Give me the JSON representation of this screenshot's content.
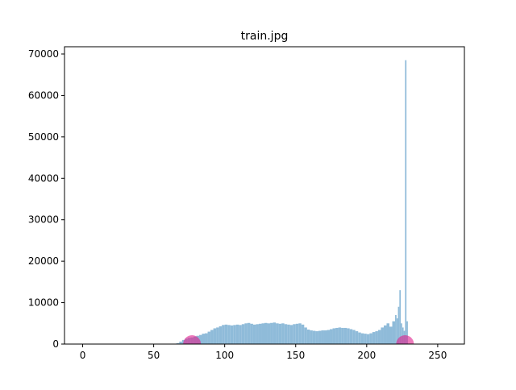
{
  "chart_data": {
    "type": "histogram",
    "title": "train.jpg",
    "bins": [
      66,
      68,
      70,
      72,
      74,
      76,
      78,
      80,
      82,
      84,
      86,
      88,
      90,
      92,
      94,
      96,
      98,
      100,
      102,
      104,
      106,
      108,
      110,
      112,
      114,
      116,
      118,
      120,
      122,
      124,
      126,
      128,
      130,
      132,
      134,
      136,
      138,
      140,
      142,
      144,
      146,
      148,
      150,
      152,
      154,
      156,
      158,
      160,
      162,
      164,
      166,
      168,
      170,
      172,
      174,
      176,
      178,
      180,
      182,
      184,
      186,
      188,
      190,
      192,
      194,
      196,
      198,
      200,
      202,
      204,
      206,
      208,
      210,
      212,
      214,
      216,
      218,
      220,
      221,
      222,
      223,
      224,
      225,
      226,
      227,
      228,
      229
    ],
    "values": [
      200,
      600,
      1000,
      1300,
      1500,
      1600,
      1800,
      2000,
      2200,
      2500,
      2600,
      3000,
      3400,
      3800,
      4000,
      4300,
      4600,
      4700,
      4600,
      4500,
      4600,
      4700,
      4600,
      4800,
      5000,
      5100,
      4900,
      4700,
      4800,
      4900,
      5000,
      5100,
      5000,
      5100,
      5200,
      5000,
      4900,
      5000,
      4800,
      4700,
      4600,
      4800,
      4900,
      5000,
      4700,
      4000,
      3500,
      3300,
      3200,
      3100,
      3200,
      3300,
      3300,
      3400,
      3600,
      3800,
      3900,
      4000,
      3900,
      3900,
      3800,
      3600,
      3400,
      3100,
      2800,
      2600,
      2500,
      2400,
      2600,
      2900,
      3100,
      3400,
      4000,
      4500,
      5000,
      4200,
      5500,
      7000,
      6200,
      9000,
      13000,
      5000,
      4000,
      3200,
      68500,
      5500
    ],
    "color": "#8fbbd9",
    "points": {
      "x": [
        77,
        227
      ],
      "y": [
        0,
        0
      ],
      "color": "#e0208c"
    },
    "xlim": [
      -12.8,
      268.8
    ],
    "ylim": [
      0,
      71750
    ],
    "xticks": [
      0,
      50,
      100,
      150,
      200,
      250
    ],
    "yticks": [
      0,
      10000,
      20000,
      30000,
      40000,
      50000,
      60000,
      70000
    ]
  }
}
